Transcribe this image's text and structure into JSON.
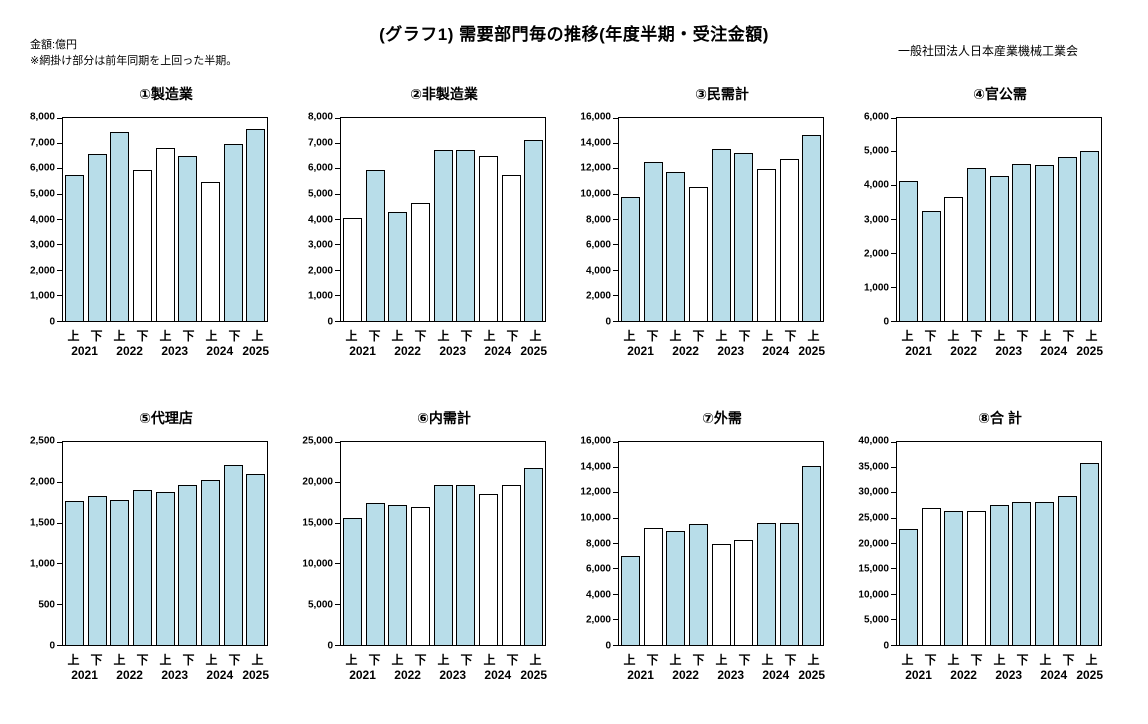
{
  "header": {
    "title": "(グラフ1) 需要部門毎の推移(年度半期・受注金額)",
    "unit_note": "金額:億円",
    "shading_note": "※網掛け部分は前年同期を上回った半期。",
    "organization": "一般社団法人日本産業機械工業会"
  },
  "colors": {
    "shaded_bar": "#b8dde9",
    "unshaded_bar": "#ffffff",
    "bar_border": "#000000"
  },
  "x_axis": {
    "half_labels": [
      "上",
      "下",
      "上",
      "下",
      "上",
      "下",
      "上",
      "下",
      "上"
    ],
    "year_labels": [
      "2021",
      "2022",
      "2023",
      "2024",
      "2025"
    ]
  },
  "chart_data": [
    {
      "type": "bar",
      "title": "①製造業",
      "x": [
        "2021上",
        "2021下",
        "2022上",
        "2022下",
        "2023上",
        "2023下",
        "2024上",
        "2024下",
        "2025上"
      ],
      "values": [
        5750,
        6580,
        7430,
        5950,
        6820,
        6500,
        5480,
        6960,
        7550
      ],
      "shaded": [
        true,
        true,
        true,
        false,
        false,
        true,
        false,
        true,
        true
      ],
      "ylim": [
        0,
        8000
      ],
      "ytick_step": 1000
    },
    {
      "type": "bar",
      "title": "②非製造業",
      "x": [
        "2021上",
        "2021下",
        "2022上",
        "2022下",
        "2023上",
        "2023下",
        "2024上",
        "2024下",
        "2025上"
      ],
      "values": [
        4050,
        5950,
        4300,
        4650,
        6730,
        6730,
        6500,
        5760,
        7150
      ],
      "shaded": [
        false,
        true,
        true,
        false,
        true,
        true,
        false,
        false,
        true
      ],
      "ylim": [
        0,
        8000
      ],
      "ytick_step": 1000
    },
    {
      "type": "bar",
      "title": "③民需計",
      "x": [
        "2021上",
        "2021下",
        "2022上",
        "2022下",
        "2023上",
        "2023下",
        "2024上",
        "2024下",
        "2025上"
      ],
      "values": [
        9800,
        12550,
        11750,
        10550,
        13550,
        13250,
        12000,
        12750,
        14700
      ],
      "shaded": [
        true,
        true,
        true,
        false,
        true,
        true,
        false,
        false,
        true
      ],
      "ylim": [
        0,
        16000
      ],
      "ytick_step": 2000
    },
    {
      "type": "bar",
      "title": "④官公需",
      "x": [
        "2021上",
        "2021下",
        "2022上",
        "2022下",
        "2023上",
        "2023下",
        "2024上",
        "2024下",
        "2025上"
      ],
      "values": [
        4150,
        3250,
        3680,
        4520,
        4280,
        4640,
        4610,
        4850,
        5030
      ],
      "shaded": [
        true,
        true,
        false,
        true,
        true,
        true,
        true,
        true,
        true
      ],
      "ylim": [
        0,
        6000
      ],
      "ytick_step": 1000
    },
    {
      "type": "bar",
      "title": "⑤代理店",
      "x": [
        "2021上",
        "2021下",
        "2022上",
        "2022下",
        "2023上",
        "2023下",
        "2024上",
        "2024下",
        "2025上"
      ],
      "values": [
        1770,
        1840,
        1790,
        1910,
        1890,
        1970,
        2030,
        2220,
        2100
      ],
      "shaded": [
        true,
        true,
        true,
        true,
        true,
        true,
        true,
        true,
        true
      ],
      "ylim": [
        0,
        2500
      ],
      "ytick_step": 500
    },
    {
      "type": "bar",
      "title": "⑥内需計",
      "x": [
        "2021上",
        "2021下",
        "2022上",
        "2022下",
        "2023上",
        "2023下",
        "2024上",
        "2024下",
        "2025上"
      ],
      "values": [
        15700,
        17550,
        17200,
        17000,
        19650,
        19750,
        18550,
        19750,
        21850
      ],
      "shaded": [
        true,
        true,
        true,
        false,
        true,
        true,
        false,
        false,
        true
      ],
      "ylim": [
        0,
        25000
      ],
      "ytick_step": 5000
    },
    {
      "type": "bar",
      "title": "⑦外需",
      "x": [
        "2021上",
        "2021下",
        "2022上",
        "2022下",
        "2023上",
        "2023下",
        "2024上",
        "2024下",
        "2025上"
      ],
      "values": [
        7000,
        9200,
        8950,
        9500,
        8000,
        8300,
        9600,
        9600,
        14080
      ],
      "shaded": [
        true,
        false,
        true,
        true,
        false,
        false,
        true,
        true,
        true
      ],
      "ylim": [
        0,
        16000
      ],
      "ytick_step": 2000
    },
    {
      "type": "bar",
      "title": "⑧合 計",
      "x": [
        "2021上",
        "2021下",
        "2022上",
        "2022下",
        "2023上",
        "2023下",
        "2024上",
        "2024下",
        "2025上"
      ],
      "values": [
        22800,
        27000,
        26350,
        26500,
        27650,
        28250,
        28250,
        29300,
        35850
      ],
      "shaded": [
        true,
        false,
        true,
        false,
        true,
        true,
        true,
        true,
        true
      ],
      "ylim": [
        0,
        40000
      ],
      "ytick_step": 5000
    }
  ]
}
